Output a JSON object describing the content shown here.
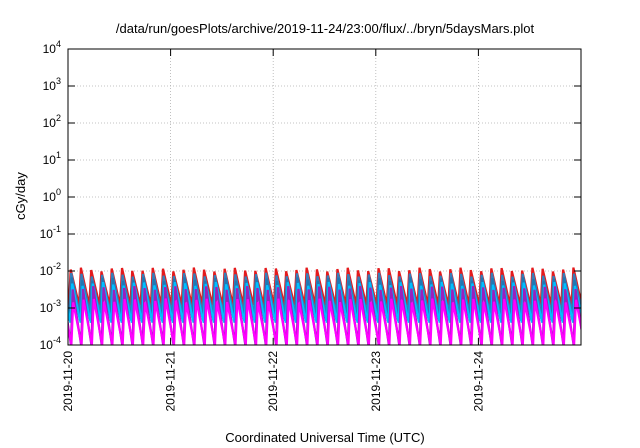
{
  "chart_data": {
    "type": "line",
    "title": "/data/run/goesPlots/archive/2019-11-24/23:00/flux/../bryn/5daysMars.plot",
    "xlabel": "Coordinated Universal Time (UTC)",
    "ylabel": "cGy/day",
    "y_scale": "log",
    "ylim": [
      0.0001,
      10000
    ],
    "y_tick_labels": [
      {
        "base": "10",
        "exp": "-4"
      },
      {
        "base": "10",
        "exp": "-3"
      },
      {
        "base": "10",
        "exp": "-2"
      },
      {
        "base": "10",
        "exp": "-1"
      },
      {
        "base": "10",
        "exp": "0"
      },
      {
        "base": "10",
        "exp": "1"
      },
      {
        "base": "10",
        "exp": "2"
      },
      {
        "base": "10",
        "exp": "3"
      },
      {
        "base": "10",
        "exp": "4"
      }
    ],
    "x_tick_labels": [
      "2019-11-20",
      "2019-11-21",
      "2019-11-22",
      "2019-11-23",
      "2019-11-24"
    ],
    "xlim": [
      "2019-11-20T00:00",
      "2019-11-25T00:00"
    ],
    "grid": true,
    "legend": "none",
    "series_shape": "sawtooth",
    "cycles_per_day": 10,
    "series": [
      {
        "color": "#e41a1c",
        "peak": 0.011,
        "trough": 0.0012
      },
      {
        "color": "#377eb8",
        "peak": 0.008,
        "trough": 0.0007
      },
      {
        "color": "#1f78b4",
        "peak": 0.006,
        "trough": 0.00045
      },
      {
        "color": "#00bfff",
        "peak": 0.0045,
        "trough": 0.0004
      },
      {
        "color": "#9a1fbf",
        "peak": 0.0035,
        "trough": 0.0001
      },
      {
        "color": "#ff00ff",
        "peak": 0.0016,
        "trough": 0.0001
      }
    ]
  }
}
